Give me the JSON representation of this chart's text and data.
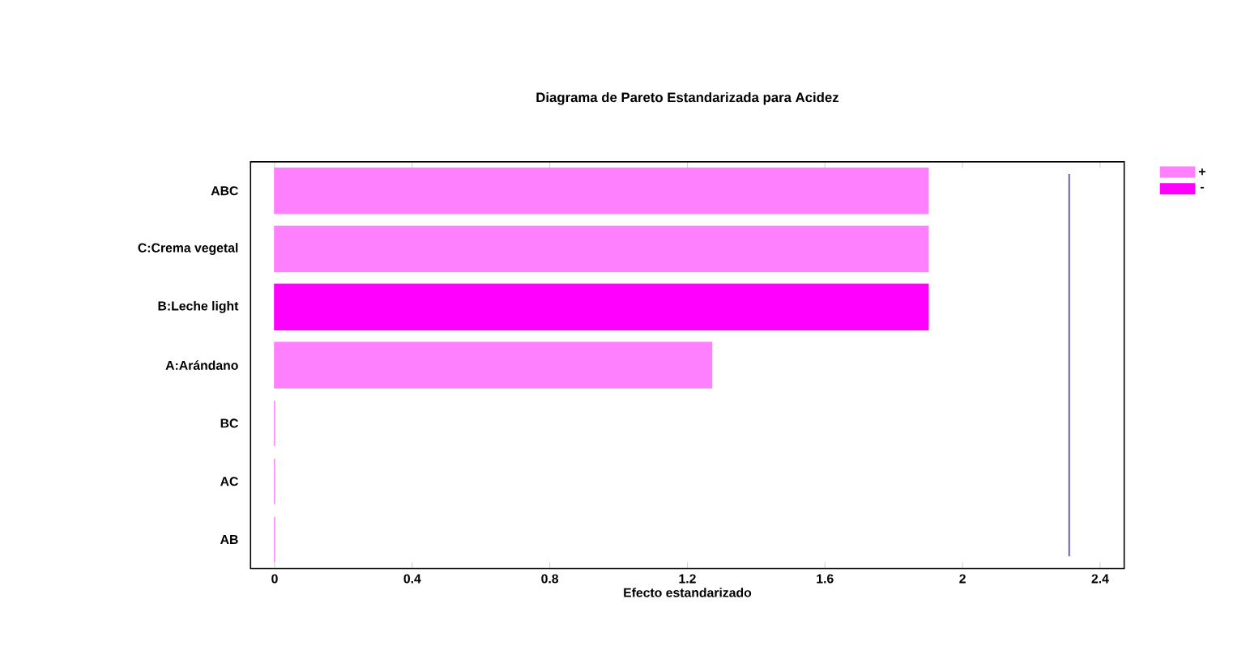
{
  "chart_data": {
    "type": "bar",
    "orientation": "horizontal",
    "stacked": true,
    "title": "Diagrama de Pareto Estandarizada para Acidez",
    "xlabel": "Efecto estandarizado",
    "categories": [
      "ABC",
      "C:Crema vegetal",
      "B:Leche light",
      "A:Arándano",
      "BC",
      "AC",
      "AB"
    ],
    "series": [
      {
        "name": "+",
        "color": "#ff80ff",
        "values": [
          1.9,
          1.9,
          null,
          1.27,
          0,
          0,
          0
        ]
      },
      {
        "name": "-",
        "color": "#ff00ff",
        "values": [
          null,
          null,
          1.9,
          null,
          null,
          null,
          null
        ]
      }
    ],
    "xlim": [
      -0.07,
      2.47
    ],
    "xticks": [
      0,
      0.4,
      0.8,
      1.2,
      1.6,
      2,
      2.4
    ],
    "ref_lines": [
      {
        "axis": "x",
        "value": 2.31,
        "color": "#3030ff"
      }
    ],
    "legend": "top right",
    "grid": false
  }
}
